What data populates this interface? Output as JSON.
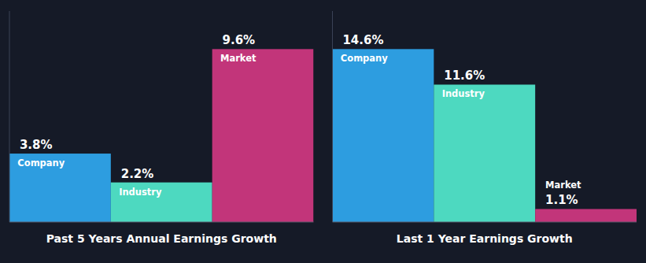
{
  "chart_data": [
    {
      "type": "bar",
      "xlabel": "Past 5 Years Annual Earnings Growth",
      "categories": [
        "Company",
        "Industry",
        "Market"
      ],
      "values": [
        3.8,
        2.2,
        9.6
      ],
      "value_labels": [
        "3.8%",
        "2.2%",
        "9.6%"
      ],
      "colors": [
        "#2d9de0",
        "#4dd9c0",
        "#c2357a"
      ],
      "ylim": [
        0,
        11.712
      ],
      "data_labels": true,
      "tick_labels": false,
      "grid": false
    },
    {
      "type": "bar",
      "xlabel": "Last 1 Year Earnings Growth",
      "categories": [
        "Company",
        "Industry",
        "Market"
      ],
      "values": [
        14.6,
        11.6,
        1.1
      ],
      "value_labels": [
        "14.6%",
        "11.6%",
        "1.1%"
      ],
      "colors": [
        "#2d9de0",
        "#4dd9c0",
        "#c2357a"
      ],
      "ylim": [
        0,
        17.812
      ],
      "data_labels": true,
      "tick_labels": false,
      "grid": false
    }
  ]
}
